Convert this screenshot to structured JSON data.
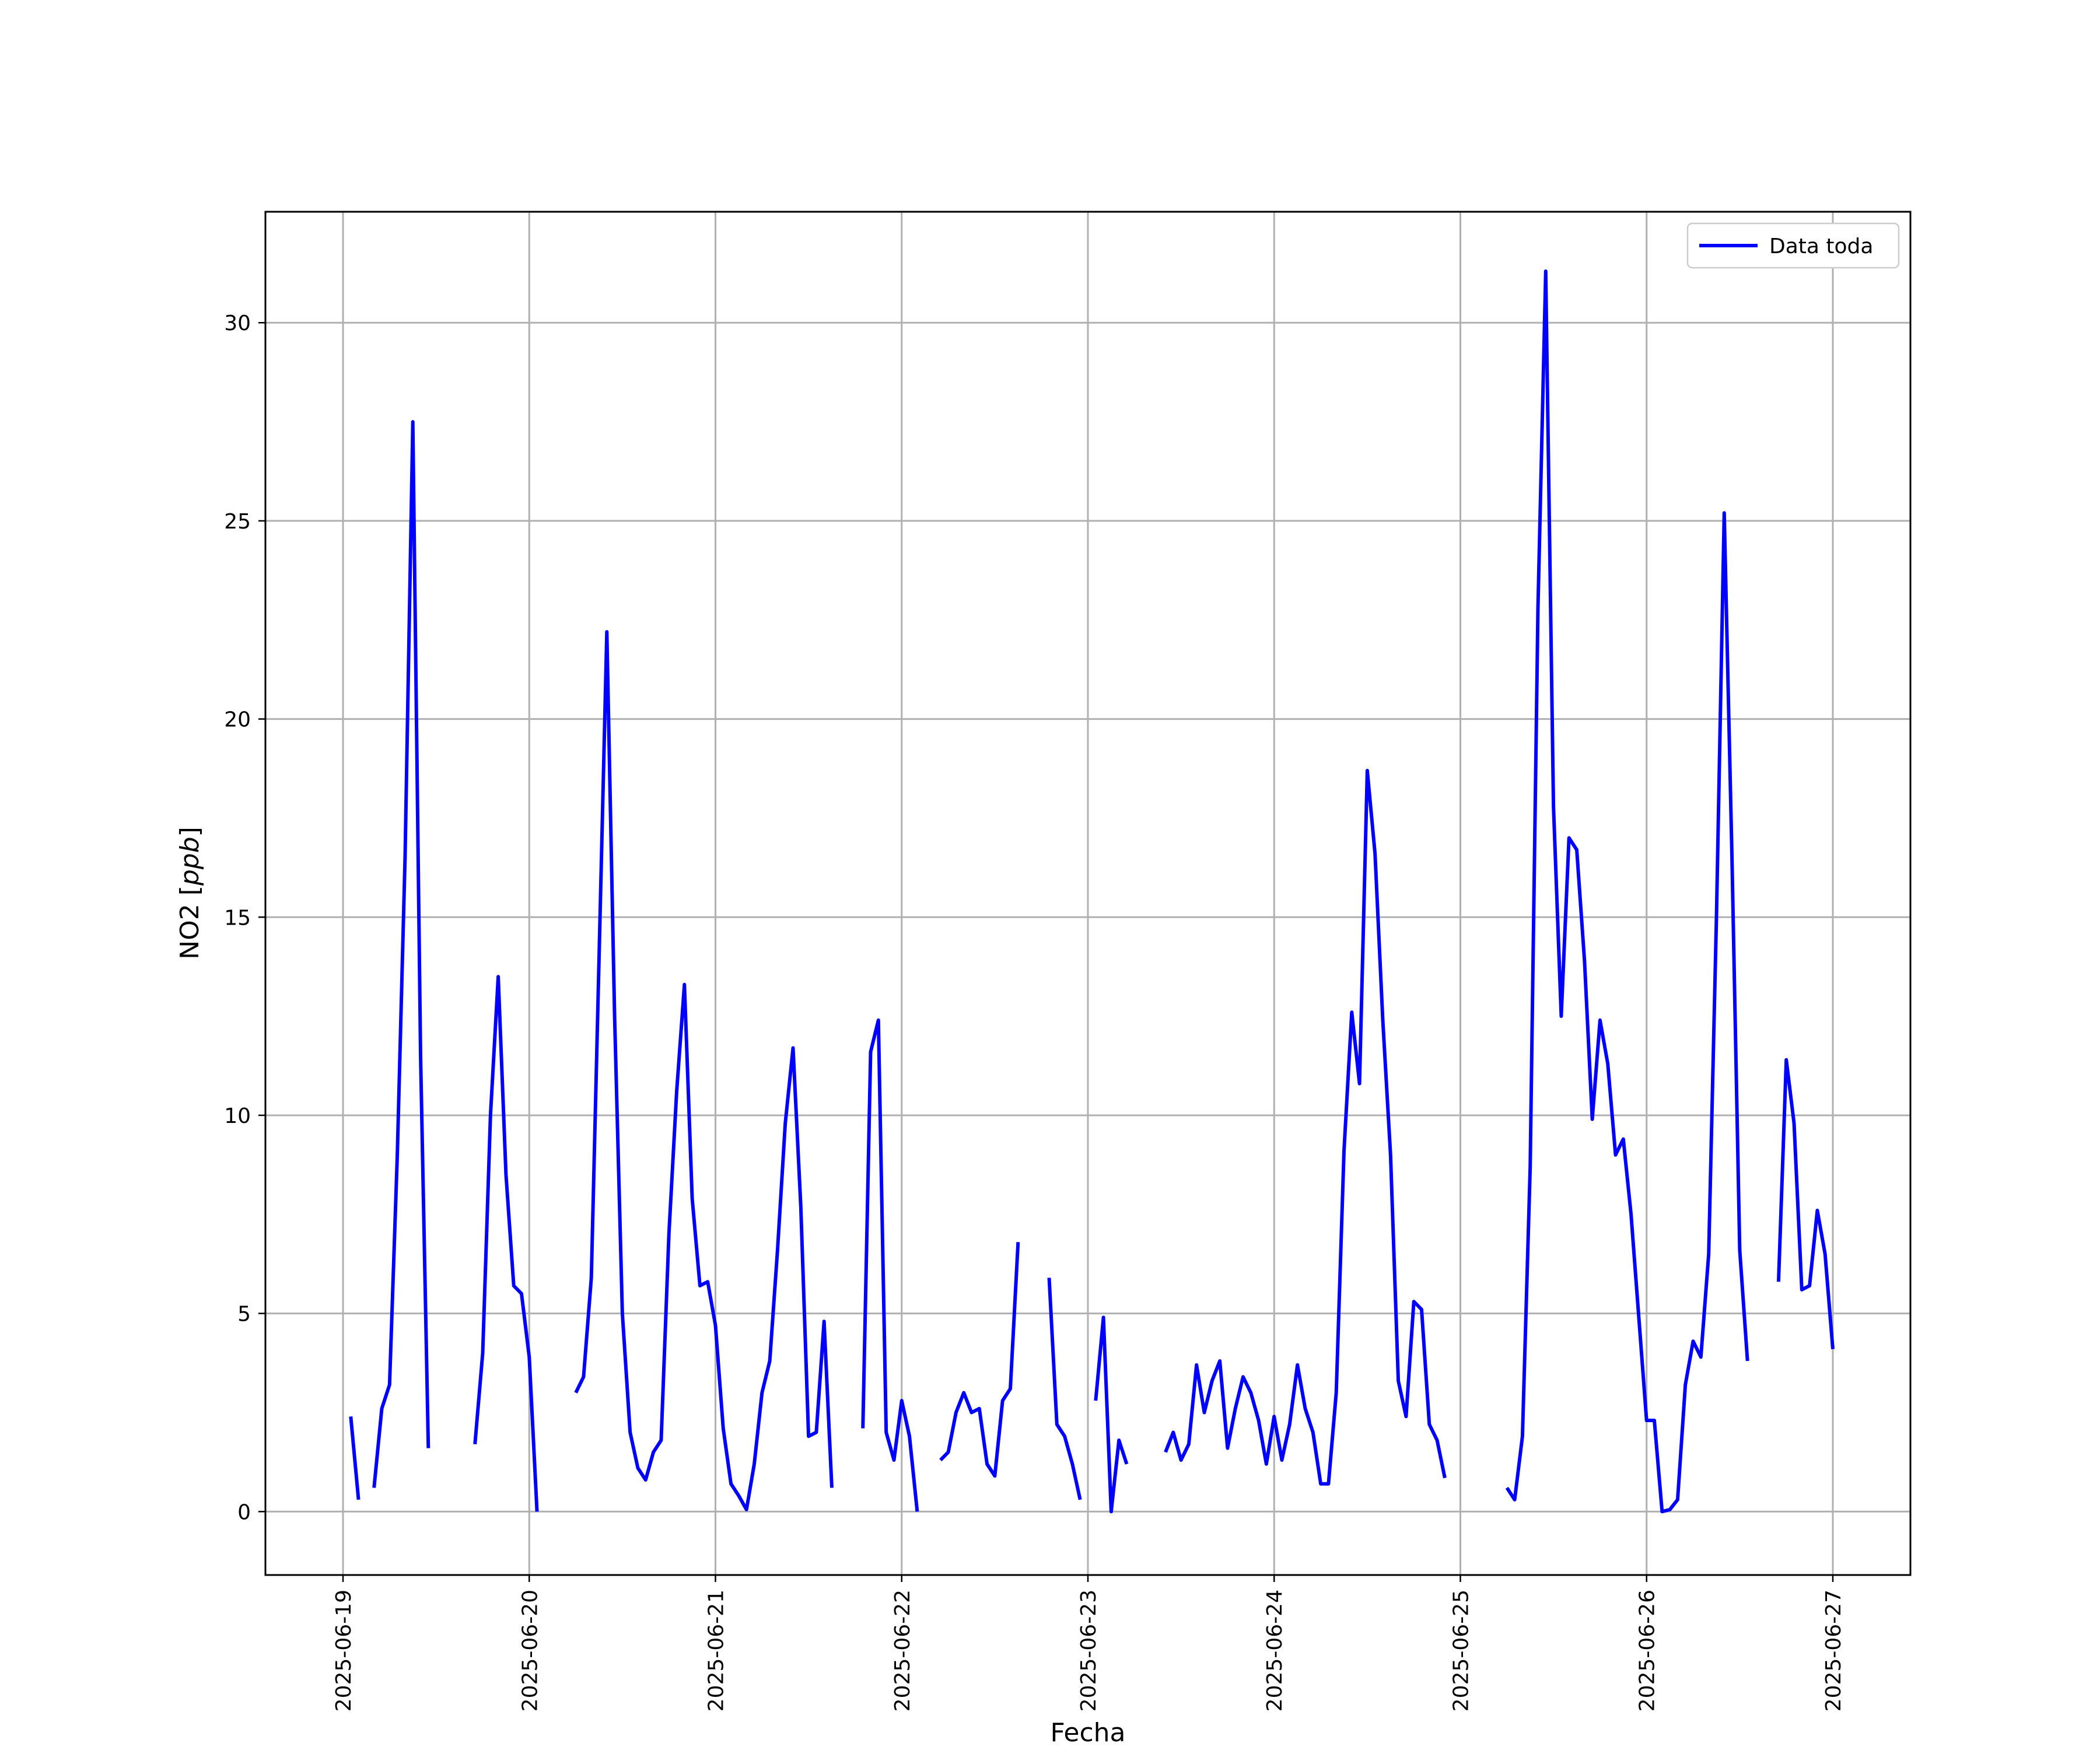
{
  "chart_data": {
    "type": "line",
    "xlabel": "Fecha",
    "ylabel": "NO2 [",
    "ylabel_unit": "ppb",
    "ylabel_close": "]",
    "xlim": [
      "2025-06-18T14:00",
      "2025-06-27T10:00"
    ],
    "ylim": [
      -1.6,
      32.8
    ],
    "x_ticks": [
      "2025-06-19",
      "2025-06-20",
      "2025-06-21",
      "2025-06-22",
      "2025-06-23",
      "2025-06-24",
      "2025-06-25",
      "2025-06-26",
      "2025-06-27"
    ],
    "y_ticks": [
      0,
      5,
      10,
      15,
      20,
      25,
      30
    ],
    "grid": true,
    "legend_position": "top-right",
    "colors": {
      "series": "#0000ff",
      "grid": "#b0b0b0",
      "axes": "#000000"
    },
    "series": [
      {
        "name": "Data toda",
        "color": "#0000ff",
        "segments": [
          [
            [
              "2025-06-19T01:00",
              2.4
            ],
            [
              "2025-06-19T02:00",
              0.3
            ]
          ],
          [
            [
              "2025-06-19T04:00",
              0.6
            ],
            [
              "2025-06-19T05:00",
              2.6
            ],
            [
              "2025-06-19T06:00",
              3.2
            ],
            [
              "2025-06-19T07:00",
              9.0
            ],
            [
              "2025-06-19T08:00",
              16.5
            ],
            [
              "2025-06-19T09:00",
              27.5
            ],
            [
              "2025-06-19T10:00",
              11.5
            ],
            [
              "2025-06-19T11:00",
              1.6
            ]
          ],
          [
            [
              "2025-06-19T17:00",
              1.7
            ],
            [
              "2025-06-19T18:00",
              4.0
            ],
            [
              "2025-06-19T19:00",
              10.0
            ],
            [
              "2025-06-19T20:00",
              13.5
            ],
            [
              "2025-06-19T21:00",
              8.5
            ],
            [
              "2025-06-19T22:00",
              5.7
            ],
            [
              "2025-06-19T23:00",
              5.5
            ],
            [
              "2025-06-20T00:00",
              3.9
            ],
            [
              "2025-06-20T01:00",
              0.0
            ]
          ],
          [
            [
              "2025-06-20T06:00",
              3.0
            ],
            [
              "2025-06-20T07:00",
              3.4
            ],
            [
              "2025-06-20T08:00",
              5.9
            ],
            [
              "2025-06-20T09:00",
              14.0
            ],
            [
              "2025-06-20T10:00",
              22.2
            ],
            [
              "2025-06-20T11:00",
              12.5
            ],
            [
              "2025-06-20T12:00",
              5.0
            ],
            [
              "2025-06-20T13:00",
              2.0
            ],
            [
              "2025-06-20T14:00",
              1.1
            ],
            [
              "2025-06-20T15:00",
              0.8
            ],
            [
              "2025-06-20T16:00",
              1.5
            ],
            [
              "2025-06-20T17:00",
              1.8
            ],
            [
              "2025-06-20T18:00",
              7.0
            ],
            [
              "2025-06-20T19:00",
              10.6
            ],
            [
              "2025-06-20T20:00",
              13.3
            ],
            [
              "2025-06-20T21:00",
              7.9
            ],
            [
              "2025-06-20T22:00",
              5.7
            ],
            [
              "2025-06-20T23:00",
              5.8
            ],
            [
              "2025-06-21T00:00",
              4.7
            ],
            [
              "2025-06-21T01:00",
              2.1
            ],
            [
              "2025-06-21T02:00",
              0.7
            ],
            [
              "2025-06-21T03:00",
              0.4
            ],
            [
              "2025-06-21T04:00",
              0.05
            ],
            [
              "2025-06-21T05:00",
              1.2
            ],
            [
              "2025-06-21T06:00",
              3.0
            ],
            [
              "2025-06-21T07:00",
              3.8
            ],
            [
              "2025-06-21T08:00",
              6.6
            ],
            [
              "2025-06-21T09:00",
              9.8
            ],
            [
              "2025-06-21T10:00",
              11.7
            ],
            [
              "2025-06-21T11:00",
              7.7
            ],
            [
              "2025-06-21T12:00",
              1.9
            ],
            [
              "2025-06-21T13:00",
              2.0
            ],
            [
              "2025-06-21T14:00",
              4.8
            ],
            [
              "2025-06-21T15:00",
              0.6
            ]
          ],
          [
            [
              "2025-06-21T19:00",
              2.1
            ],
            [
              "2025-06-21T20:00",
              11.6
            ],
            [
              "2025-06-21T21:00",
              12.4
            ],
            [
              "2025-06-21T22:00",
              2.0
            ],
            [
              "2025-06-21T23:00",
              1.3
            ],
            [
              "2025-06-22T00:00",
              2.8
            ],
            [
              "2025-06-22T01:00",
              1.9
            ],
            [
              "2025-06-22T02:00",
              0.0
            ]
          ],
          [
            [
              "2025-06-22T05:00",
              1.3
            ],
            [
              "2025-06-22T06:00",
              1.5
            ],
            [
              "2025-06-22T07:00",
              2.5
            ],
            [
              "2025-06-22T08:00",
              3.0
            ],
            [
              "2025-06-22T09:00",
              2.5
            ],
            [
              "2025-06-22T10:00",
              2.6
            ],
            [
              "2025-06-22T11:00",
              1.2
            ],
            [
              "2025-06-22T12:00",
              0.9
            ],
            [
              "2025-06-22T13:00",
              2.8
            ],
            [
              "2025-06-22T14:00",
              3.1
            ],
            [
              "2025-06-22T15:00",
              6.8
            ]
          ],
          [
            [
              "2025-06-22T19:00",
              5.9
            ],
            [
              "2025-06-22T20:00",
              2.2
            ],
            [
              "2025-06-22T21:00",
              1.9
            ],
            [
              "2025-06-22T22:00",
              1.2
            ],
            [
              "2025-06-22T23:00",
              0.3
            ]
          ],
          [
            [
              "2025-06-23T01:00",
              2.8
            ],
            [
              "2025-06-23T02:00",
              4.9
            ],
            [
              "2025-06-23T03:00",
              0.0
            ],
            [
              "2025-06-23T04:00",
              1.8
            ],
            [
              "2025-06-23T05:00",
              1.2
            ]
          ],
          [
            [
              "2025-06-23T10:00",
              1.5
            ],
            [
              "2025-06-23T11:00",
              2.0
            ],
            [
              "2025-06-23T12:00",
              1.3
            ],
            [
              "2025-06-23T13:00",
              1.7
            ],
            [
              "2025-06-23T14:00",
              3.7
            ],
            [
              "2025-06-23T15:00",
              2.5
            ],
            [
              "2025-06-23T16:00",
              3.3
            ],
            [
              "2025-06-23T17:00",
              3.8
            ],
            [
              "2025-06-23T18:00",
              1.6
            ],
            [
              "2025-06-23T19:00",
              2.6
            ],
            [
              "2025-06-23T20:00",
              3.4
            ],
            [
              "2025-06-23T21:00",
              3.0
            ],
            [
              "2025-06-23T22:00",
              2.3
            ],
            [
              "2025-06-23T23:00",
              1.2
            ],
            [
              "2025-06-24T00:00",
              2.4
            ],
            [
              "2025-06-24T01:00",
              1.3
            ],
            [
              "2025-06-24T02:00",
              2.2
            ],
            [
              "2025-06-24T03:00",
              3.7
            ],
            [
              "2025-06-24T04:00",
              2.6
            ],
            [
              "2025-06-24T05:00",
              2.0
            ],
            [
              "2025-06-24T06:00",
              0.7
            ],
            [
              "2025-06-24T07:00",
              0.7
            ],
            [
              "2025-06-24T08:00",
              3.0
            ],
            [
              "2025-06-24T09:00",
              9.1
            ],
            [
              "2025-06-24T10:00",
              12.6
            ],
            [
              "2025-06-24T11:00",
              10.8
            ],
            [
              "2025-06-24T12:00",
              18.7
            ],
            [
              "2025-06-24T13:00",
              16.6
            ],
            [
              "2025-06-24T14:00",
              12.4
            ],
            [
              "2025-06-24T15:00",
              9.0
            ],
            [
              "2025-06-24T16:00",
              3.3
            ],
            [
              "2025-06-24T17:00",
              2.4
            ],
            [
              "2025-06-24T18:00",
              5.3
            ],
            [
              "2025-06-24T19:00",
              5.1
            ],
            [
              "2025-06-24T20:00",
              2.2
            ],
            [
              "2025-06-24T21:00",
              1.8
            ],
            [
              "2025-06-24T22:00",
              0.85
            ]
          ],
          [
            [
              "2025-06-25T06:00",
              0.6
            ],
            [
              "2025-06-25T07:00",
              0.3
            ],
            [
              "2025-06-25T08:00",
              1.9
            ],
            [
              "2025-06-25T09:00",
              8.7
            ],
            [
              "2025-06-25T10:00",
              22.8
            ],
            [
              "2025-06-25T11:00",
              31.3
            ],
            [
              "2025-06-25T12:00",
              17.8
            ],
            [
              "2025-06-25T13:00",
              12.5
            ],
            [
              "2025-06-25T14:00",
              17.0
            ],
            [
              "2025-06-25T15:00",
              16.7
            ],
            [
              "2025-06-25T16:00",
              13.9
            ],
            [
              "2025-06-25T17:00",
              9.9
            ],
            [
              "2025-06-25T18:00",
              12.4
            ],
            [
              "2025-06-25T19:00",
              11.3
            ],
            [
              "2025-06-25T20:00",
              9.0
            ],
            [
              "2025-06-25T21:00",
              9.4
            ],
            [
              "2025-06-25T22:00",
              7.5
            ],
            [
              "2025-06-25T23:00",
              4.9
            ],
            [
              "2025-06-26T00:00",
              2.3
            ],
            [
              "2025-06-26T01:00",
              2.3
            ],
            [
              "2025-06-26T02:00",
              0.0
            ],
            [
              "2025-06-26T03:00",
              0.05
            ],
            [
              "2025-06-26T04:00",
              0.3
            ],
            [
              "2025-06-26T05:00",
              3.2
            ],
            [
              "2025-06-26T06:00",
              4.3
            ],
            [
              "2025-06-26T07:00",
              3.9
            ],
            [
              "2025-06-26T08:00",
              6.5
            ],
            [
              "2025-06-26T09:00",
              15.0
            ],
            [
              "2025-06-26T10:00",
              25.2
            ],
            [
              "2025-06-26T11:00",
              16.5
            ],
            [
              "2025-06-26T12:00",
              6.6
            ],
            [
              "2025-06-26T13:00",
              3.8
            ]
          ],
          [
            [
              "2025-06-26T17:00",
              5.8
            ],
            [
              "2025-06-26T18:00",
              11.4
            ],
            [
              "2025-06-26T19:00",
              9.8
            ],
            [
              "2025-06-26T20:00",
              5.6
            ],
            [
              "2025-06-26T21:00",
              5.7
            ],
            [
              "2025-06-26T22:00",
              7.6
            ],
            [
              "2025-06-26T23:00",
              6.5
            ],
            [
              "2025-06-27T00:00",
              4.1
            ]
          ]
        ]
      }
    ]
  }
}
